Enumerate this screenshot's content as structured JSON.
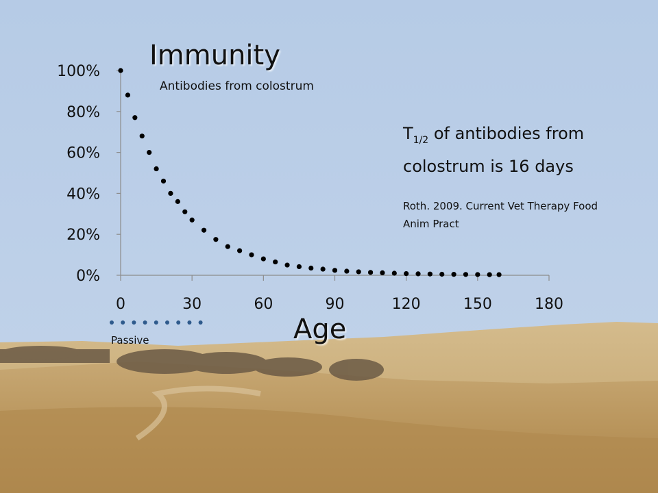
{
  "chart_data": {
    "type": "scatter",
    "title": "Immunity",
    "subtitle": "Antibodies from colostrum",
    "xlabel": "Age",
    "ylabel": "",
    "x_ticks": [
      "0",
      "30",
      "60",
      "90",
      "120",
      "150",
      "180"
    ],
    "y_ticks": [
      "0%",
      "20%",
      "40%",
      "60%",
      "80%",
      "100%"
    ],
    "xlim": [
      0,
      180
    ],
    "ylim": [
      0,
      100
    ],
    "grid": false,
    "series": [
      {
        "x": [
          0,
          3,
          6,
          9,
          12,
          15,
          18,
          21,
          24,
          27,
          30,
          35,
          40,
          45,
          50,
          55,
          60,
          65,
          70,
          75,
          80,
          85,
          90,
          95,
          100,
          105,
          110,
          115,
          120,
          125,
          130,
          135,
          140,
          145,
          150,
          155,
          159
        ],
        "y": [
          100,
          88,
          77,
          68,
          60,
          52,
          46,
          40,
          36,
          31,
          27,
          22,
          17.5,
          14,
          12,
          10,
          8,
          6.5,
          5,
          4.2,
          3.5,
          3,
          2.4,
          2,
          1.7,
          1.4,
          1.2,
          1,
          0.8,
          0.7,
          0.6,
          0.5,
          0.45,
          0.4,
          0.35,
          0.3,
          0.3
        ]
      }
    ],
    "annotations": [
      {
        "main": "T",
        "sub": "1/2",
        "rest": " of antibodies from colostrum is 16 days"
      },
      {
        "text": "Roth. 2009. Current Vet Therapy Food Anim Pract"
      },
      {
        "text": "Passive"
      }
    ],
    "colors": {
      "dots": "#000000",
      "axis": "#8c8c8c",
      "passive_dots": "#2e5a8c"
    }
  }
}
